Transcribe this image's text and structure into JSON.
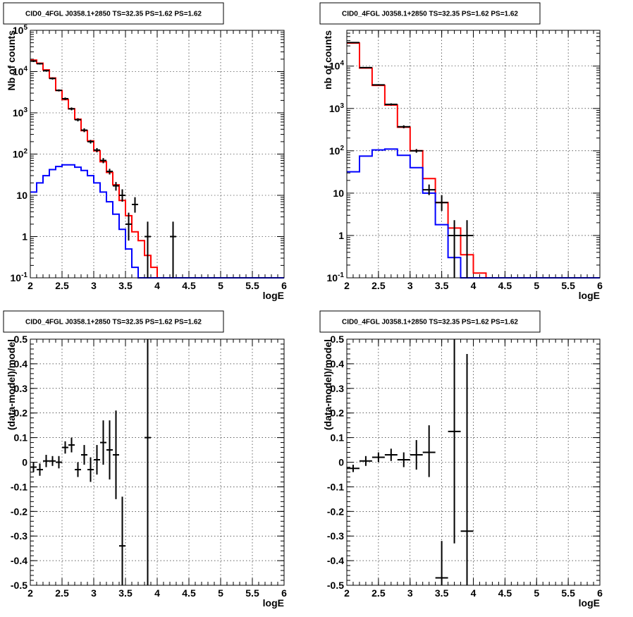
{
  "chart_data": [
    {
      "type": "line",
      "title": "CID0_4FGL J0358.1+2850 TS=32.35 PS=1.62 PS=1.62",
      "xlabel": "logE",
      "ylabel": "Nb of counts",
      "xlim": [
        2,
        6
      ],
      "ylim": [
        0.1,
        100000
      ],
      "yscale": "log",
      "grid": true,
      "x_ticks": [
        "2",
        "2.5",
        "3",
        "3.5",
        "4",
        "4.5",
        "5",
        "5.5",
        "6"
      ],
      "y_ticks": [
        "10^-1",
        "1",
        "10",
        "10^2",
        "10^3",
        "10^4",
        "10^5"
      ],
      "bin_edges": [
        2.0,
        2.1,
        2.2,
        2.3,
        2.4,
        2.5,
        2.6,
        2.7,
        2.8,
        2.9,
        3.0,
        3.1,
        3.2,
        3.3,
        3.4,
        3.5,
        3.6,
        3.7,
        3.8,
        3.9,
        4.0,
        4.1,
        4.2,
        4.3,
        4.4,
        4.5,
        4.6,
        4.7,
        4.8,
        4.9,
        5.0,
        5.1,
        5.2,
        5.3,
        5.4,
        5.5,
        5.6,
        5.7,
        5.8,
        5.9,
        6.0
      ],
      "series": [
        {
          "color": "#ff0000",
          "values": [
            19000,
            16000,
            11000,
            7000,
            3500,
            2100,
            1250,
            700,
            370,
            210,
            120,
            65,
            36,
            18,
            7.5,
            3.2,
            1.3,
            0.8,
            0.35,
            0.18,
            0.1,
            0.1,
            0.1,
            0.1,
            0.1,
            0.1,
            0.1,
            0.1,
            0.1,
            0.1,
            0.1,
            0.1,
            0.1,
            0.1,
            0.1,
            0.1,
            0.1,
            0.1,
            0.1,
            0.1
          ]
        },
        {
          "color": "#0000ff",
          "values": [
            12,
            20,
            30,
            42,
            50,
            55,
            55,
            48,
            40,
            30,
            20,
            12,
            7,
            3.5,
            1.5,
            0.5,
            0.18,
            0.1,
            0.1,
            0.1,
            0.1,
            0.1,
            0.1,
            0.1,
            0.1,
            0.1,
            0.1,
            0.1,
            0.1,
            0.1,
            0.1,
            0.1,
            0.1,
            0.1,
            0.1,
            0.1,
            0.1,
            0.1,
            0.1,
            0.1
          ]
        }
      ],
      "data_points": [
        {
          "x": 2.05,
          "y": 18000,
          "lo": 17000,
          "hi": 19000,
          "xerr": 0.05
        },
        {
          "x": 2.15,
          "y": 15500,
          "lo": 14800,
          "hi": 16200,
          "xerr": 0.05
        },
        {
          "x": 2.25,
          "y": 10500,
          "lo": 10000,
          "hi": 11000,
          "xerr": 0.05
        },
        {
          "x": 2.35,
          "y": 6800,
          "lo": 6400,
          "hi": 7200,
          "xerr": 0.05
        },
        {
          "x": 2.45,
          "y": 3500,
          "lo": 3300,
          "hi": 3700,
          "xerr": 0.05
        },
        {
          "x": 2.55,
          "y": 2200,
          "lo": 2050,
          "hi": 2350,
          "xerr": 0.05
        },
        {
          "x": 2.65,
          "y": 1250,
          "lo": 1150,
          "hi": 1350,
          "xerr": 0.05
        },
        {
          "x": 2.75,
          "y": 680,
          "lo": 620,
          "hi": 740,
          "xerr": 0.05
        },
        {
          "x": 2.85,
          "y": 380,
          "lo": 340,
          "hi": 420,
          "xerr": 0.05
        },
        {
          "x": 2.95,
          "y": 200,
          "lo": 180,
          "hi": 220,
          "xerr": 0.05
        },
        {
          "x": 3.05,
          "y": 125,
          "lo": 110,
          "hi": 140,
          "xerr": 0.05
        },
        {
          "x": 3.15,
          "y": 70,
          "lo": 60,
          "hi": 80,
          "xerr": 0.05
        },
        {
          "x": 3.25,
          "y": 38,
          "lo": 32,
          "hi": 44,
          "xerr": 0.05
        },
        {
          "x": 3.35,
          "y": 17,
          "lo": 13,
          "hi": 21,
          "xerr": 0.05
        },
        {
          "x": 3.45,
          "y": 10,
          "lo": 7,
          "hi": 14,
          "xerr": 0.05
        },
        {
          "x": 3.55,
          "y": 2,
          "lo": 0.8,
          "hi": 3.8,
          "xerr": 0.05
        },
        {
          "x": 3.65,
          "y": 6,
          "lo": 3.8,
          "hi": 9,
          "xerr": 0.05
        },
        {
          "x": 3.85,
          "y": 1,
          "lo": 0.1,
          "hi": 2.3,
          "xerr": 0.05
        },
        {
          "x": 4.25,
          "y": 1,
          "lo": 0.1,
          "hi": 2.3,
          "xerr": 0.05
        }
      ]
    },
    {
      "type": "line",
      "title": "CID0_4FGL J0358.1+2850 TS=32.35 PS=1.62 PS=1.62",
      "xlabel": "logE",
      "ylabel": "nb of counts",
      "xlim": [
        2,
        6
      ],
      "ylim": [
        0.1,
        70000
      ],
      "yscale": "log",
      "grid": true,
      "x_ticks": [
        "2",
        "2.5",
        "3",
        "3.5",
        "4",
        "4.5",
        "5",
        "5.5",
        "6"
      ],
      "y_ticks": [
        "10^-1",
        "1",
        "10",
        "10^2",
        "10^3",
        "10^4"
      ],
      "bin_edges": [
        2.0,
        2.2,
        2.4,
        2.6,
        2.8,
        3.0,
        3.2,
        3.4,
        3.6,
        3.8,
        4.0,
        4.2,
        4.4,
        4.6,
        4.8,
        5.0,
        5.2,
        5.4,
        5.6,
        5.8,
        6.0
      ],
      "series": [
        {
          "color": "#ff0000",
          "values": [
            35000,
            9000,
            3500,
            1200,
            360,
            100,
            22,
            6,
            1.5,
            0.35,
            0.13,
            0.1,
            0.1,
            0.1,
            0.1,
            0.1,
            0.1,
            0.1,
            0.1,
            0.1
          ]
        },
        {
          "color": "#0000ff",
          "values": [
            32,
            75,
            105,
            110,
            78,
            40,
            10,
            1.8,
            0.3,
            0.1,
            0.1,
            0.1,
            0.1,
            0.1,
            0.1,
            0.1,
            0.1,
            0.1,
            0.1,
            0.1
          ]
        }
      ],
      "data_points": [
        {
          "x": 2.1,
          "y": 36000,
          "lo": 35000,
          "hi": 37000,
          "xerr": 0.1
        },
        {
          "x": 2.3,
          "y": 9200,
          "lo": 8900,
          "hi": 9500,
          "xerr": 0.1
        },
        {
          "x": 2.5,
          "y": 3600,
          "lo": 3450,
          "hi": 3750,
          "xerr": 0.1
        },
        {
          "x": 2.7,
          "y": 1250,
          "lo": 1180,
          "hi": 1320,
          "xerr": 0.1
        },
        {
          "x": 2.9,
          "y": 370,
          "lo": 340,
          "hi": 400,
          "xerr": 0.1
        },
        {
          "x": 3.1,
          "y": 100,
          "lo": 90,
          "hi": 110,
          "xerr": 0.1
        },
        {
          "x": 3.3,
          "y": 12,
          "lo": 9,
          "hi": 16,
          "xerr": 0.1
        },
        {
          "x": 3.5,
          "y": 6,
          "lo": 3.8,
          "hi": 9,
          "xerr": 0.1
        },
        {
          "x": 3.7,
          "y": 1,
          "lo": 0.1,
          "hi": 2.3,
          "xerr": 0.1
        },
        {
          "x": 3.9,
          "y": 1,
          "lo": 0.1,
          "hi": 2.3,
          "xerr": 0.1
        }
      ]
    },
    {
      "type": "scatter",
      "title": "CID0_4FGL J0358.1+2850 TS=32.35 PS=1.62 PS=1.62",
      "xlabel": "logE",
      "ylabel": "(data-model)/model",
      "xlim": [
        2,
        6
      ],
      "ylim": [
        -0.5,
        0.5
      ],
      "yscale": "linear",
      "grid": true,
      "x_ticks": [
        "2",
        "2.5",
        "3",
        "3.5",
        "4",
        "4.5",
        "5",
        "5.5",
        "6"
      ],
      "y_ticks": [
        "-0.5",
        "-0.4",
        "-0.3",
        "-0.2",
        "-0.1",
        "0",
        "0.1",
        "0.2",
        "0.3",
        "0.4",
        "0.5"
      ],
      "data_points": [
        {
          "x": 2.05,
          "y": -0.02,
          "lo": -0.04,
          "hi": 0.0,
          "xerr": 0.05
        },
        {
          "x": 2.15,
          "y": -0.03,
          "lo": -0.055,
          "hi": -0.005,
          "xerr": 0.05
        },
        {
          "x": 2.25,
          "y": 0.005,
          "lo": -0.02,
          "hi": 0.03,
          "xerr": 0.05
        },
        {
          "x": 2.35,
          "y": 0.005,
          "lo": -0.015,
          "hi": 0.025,
          "xerr": 0.05
        },
        {
          "x": 2.45,
          "y": 0.0,
          "lo": -0.025,
          "hi": 0.025,
          "xerr": 0.05
        },
        {
          "x": 2.55,
          "y": 0.06,
          "lo": 0.035,
          "hi": 0.085,
          "xerr": 0.05
        },
        {
          "x": 2.65,
          "y": 0.07,
          "lo": 0.04,
          "hi": 0.1,
          "xerr": 0.05
        },
        {
          "x": 2.75,
          "y": -0.03,
          "lo": -0.06,
          "hi": 0.0,
          "xerr": 0.05
        },
        {
          "x": 2.85,
          "y": 0.03,
          "lo": -0.01,
          "hi": 0.07,
          "xerr": 0.05
        },
        {
          "x": 2.95,
          "y": -0.03,
          "lo": -0.08,
          "hi": 0.02,
          "xerr": 0.05
        },
        {
          "x": 3.05,
          "y": 0.01,
          "lo": -0.05,
          "hi": 0.07,
          "xerr": 0.05
        },
        {
          "x": 3.15,
          "y": 0.08,
          "lo": -0.01,
          "hi": 0.17,
          "xerr": 0.05
        },
        {
          "x": 3.25,
          "y": 0.05,
          "lo": -0.07,
          "hi": 0.17,
          "xerr": 0.05
        },
        {
          "x": 3.35,
          "y": 0.03,
          "lo": -0.15,
          "hi": 0.21,
          "xerr": 0.05
        },
        {
          "x": 3.45,
          "y": -0.34,
          "lo": -0.5,
          "hi": -0.14,
          "xerr": 0.05
        },
        {
          "x": 3.85,
          "y": 0.1,
          "lo": -0.5,
          "hi": 0.5,
          "xerr": 0.05
        }
      ]
    },
    {
      "type": "scatter",
      "title": "CID0_4FGL J0358.1+2850 TS=32.35 PS=1.62 PS=1.62",
      "xlabel": "logE",
      "ylabel": "(data-model)/model",
      "xlim": [
        2,
        6
      ],
      "ylim": [
        -0.5,
        0.5
      ],
      "yscale": "linear",
      "grid": true,
      "x_ticks": [
        "2",
        "2.5",
        "3",
        "3.5",
        "4",
        "4.5",
        "5",
        "5.5",
        "6"
      ],
      "y_ticks": [
        "-0.5",
        "-0.4",
        "-0.3",
        "-0.2",
        "-0.1",
        "0",
        "0.1",
        "0.2",
        "0.3",
        "0.4",
        "0.5"
      ],
      "data_points": [
        {
          "x": 2.1,
          "y": -0.025,
          "lo": -0.04,
          "hi": -0.01,
          "xerr": 0.1
        },
        {
          "x": 2.3,
          "y": 0.005,
          "lo": -0.015,
          "hi": 0.025,
          "xerr": 0.1
        },
        {
          "x": 2.5,
          "y": 0.02,
          "lo": 0.0,
          "hi": 0.04,
          "xerr": 0.1
        },
        {
          "x": 2.7,
          "y": 0.03,
          "lo": 0.005,
          "hi": 0.055,
          "xerr": 0.1
        },
        {
          "x": 2.9,
          "y": 0.01,
          "lo": -0.02,
          "hi": 0.04,
          "xerr": 0.1
        },
        {
          "x": 3.1,
          "y": 0.03,
          "lo": -0.03,
          "hi": 0.09,
          "xerr": 0.1
        },
        {
          "x": 3.3,
          "y": 0.04,
          "lo": -0.06,
          "hi": 0.15,
          "xerr": 0.1
        },
        {
          "x": 3.5,
          "y": -0.47,
          "lo": -0.5,
          "hi": -0.32,
          "xerr": 0.1
        },
        {
          "x": 3.7,
          "y": 0.125,
          "lo": -0.33,
          "hi": 0.5,
          "xerr": 0.1
        },
        {
          "x": 3.9,
          "y": -0.28,
          "lo": -0.5,
          "hi": 0.44,
          "xerr": 0.1
        }
      ]
    }
  ]
}
